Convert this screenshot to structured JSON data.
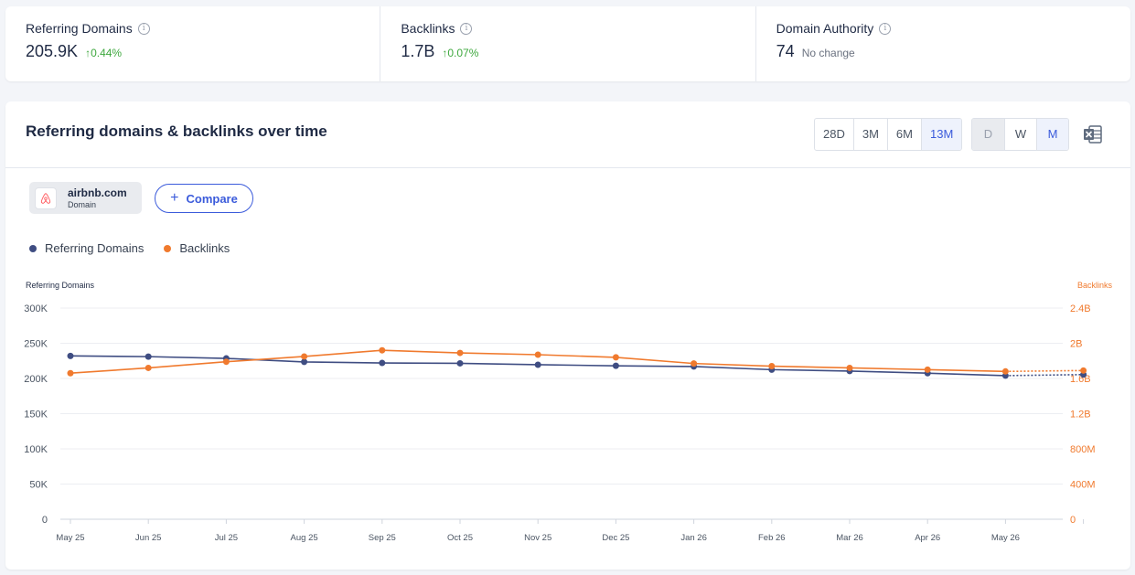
{
  "metrics": [
    {
      "label": "Referring Domains",
      "value": "205.9K",
      "change": "↑0.44%",
      "change_type": "up"
    },
    {
      "label": "Backlinks",
      "value": "1.7B",
      "change": "↑0.07%",
      "change_type": "up"
    },
    {
      "label": "Domain Authority",
      "value": "74",
      "change": "No change",
      "change_type": "neutral"
    }
  ],
  "info_icon": "info-circle-icon",
  "panel": {
    "title": "Referring domains & backlinks over time",
    "range_buttons": [
      "28D",
      "3M",
      "6M",
      "13M"
    ],
    "range_selected": "13M",
    "granularity_buttons": [
      "D",
      "W",
      "M"
    ],
    "granularity_selected": "M",
    "granularity_disabled": "D",
    "export_icon": "excel-icon"
  },
  "domain": {
    "name": "airbnb.com",
    "type": "Domain",
    "logo_icon": "airbnb-logo-icon"
  },
  "compare": {
    "label": "Compare",
    "icon": "plus-icon"
  },
  "colors": {
    "referring_domains": "#3f4d82",
    "backlinks": "#f07a2e",
    "accent": "#3b5bdb",
    "up": "#3ea83e"
  },
  "chart_data": {
    "type": "line",
    "x": [
      "May 25",
      "Jun 25",
      "Jul 25",
      "Aug 25",
      "Sep 25",
      "Oct 25",
      "Nov 25",
      "Dec 25",
      "Jan 26",
      "Feb 26",
      "Mar 26",
      "Apr 26",
      "May 26",
      ""
    ],
    "y_left_label": "Referring Domains",
    "y_right_label": "Backlinks",
    "y_left_ticks": [
      "0",
      "50K",
      "100K",
      "150K",
      "200K",
      "250K",
      "300K"
    ],
    "y_right_ticks": [
      "0",
      "400M",
      "800M",
      "1.2B",
      "1.6B",
      "2B",
      "2.4B"
    ],
    "y_left_lim": [
      0,
      300000
    ],
    "y_right_lim": [
      0,
      2400000000
    ],
    "legend_position": "top-left",
    "grid": true,
    "series": [
      {
        "name": "Referring Domains",
        "axis": "left",
        "dotted_last": true,
        "values": [
          232000,
          231000,
          228500,
          223500,
          222000,
          221500,
          219500,
          218000,
          217000,
          212500,
          210500,
          207500,
          204000,
          205500
        ]
      },
      {
        "name": "Backlinks",
        "axis": "right",
        "dotted_last": true,
        "values": [
          1660000000,
          1720000000,
          1790000000,
          1850000000,
          1920000000,
          1890000000,
          1870000000,
          1840000000,
          1770000000,
          1740000000,
          1720000000,
          1700000000,
          1680000000,
          1690000000
        ]
      }
    ]
  }
}
